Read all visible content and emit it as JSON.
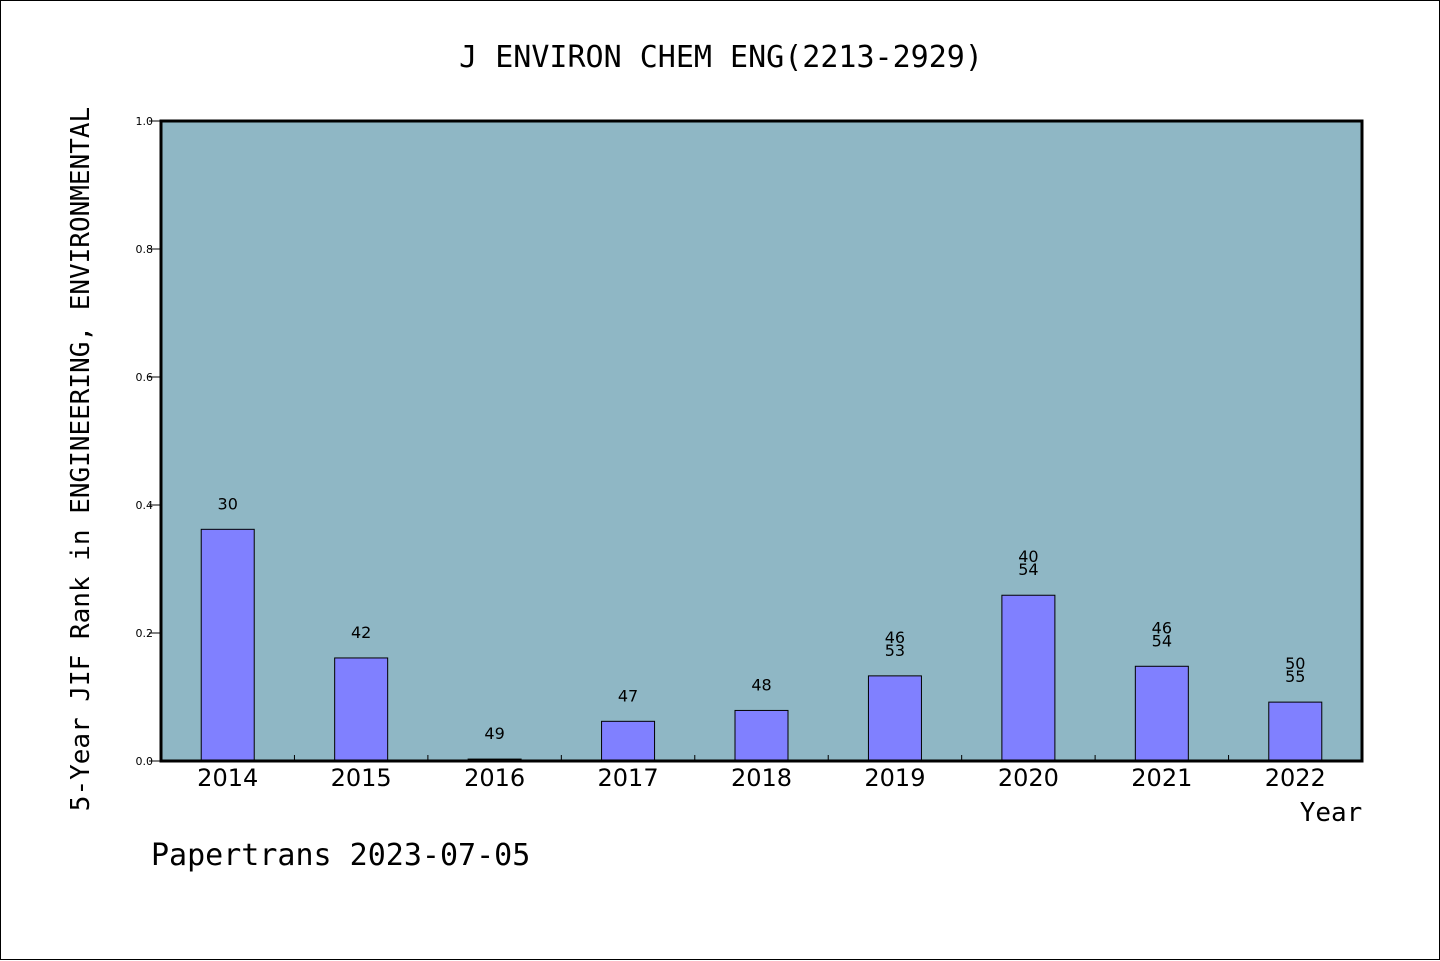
{
  "chart_data": {
    "type": "bar",
    "title": "J ENVIRON CHEM ENG(2213-2929)",
    "xlabel": "Year",
    "ylabel": "5-Year JIF Rank in ENGINEERING, ENVIRONMENTAL",
    "ylim": [
      0,
      1.0
    ],
    "yticks": [
      0.0,
      0.2,
      0.4,
      0.6,
      0.8,
      1.0
    ],
    "ytick_labels": [
      "0.0",
      "0.2",
      "0.4",
      "0.6",
      "0.8",
      "1.0"
    ],
    "categories": [
      "2014",
      "2015",
      "2016",
      "2017",
      "2018",
      "2019",
      "2020",
      "2021",
      "2022"
    ],
    "values": [
      0.362,
      0.161,
      0.003,
      0.062,
      0.079,
      0.133,
      0.259,
      0.148,
      0.092
    ],
    "bar_labels": [
      [
        "30"
      ],
      [
        "42"
      ],
      [
        "49"
      ],
      [
        "47"
      ],
      [
        "48"
      ],
      [
        "46",
        "53"
      ],
      [
        "40",
        "54"
      ],
      [
        "46",
        "54"
      ],
      [
        "50",
        "55"
      ]
    ],
    "grid": false,
    "legend": "none",
    "colors": {
      "plot_background": "#8fb7c5",
      "bar_fill": "#8080ff",
      "bar_edge": "#000000",
      "axis": "#000000"
    }
  },
  "footer": {
    "text": "Papertrans 2023-07-05"
  }
}
